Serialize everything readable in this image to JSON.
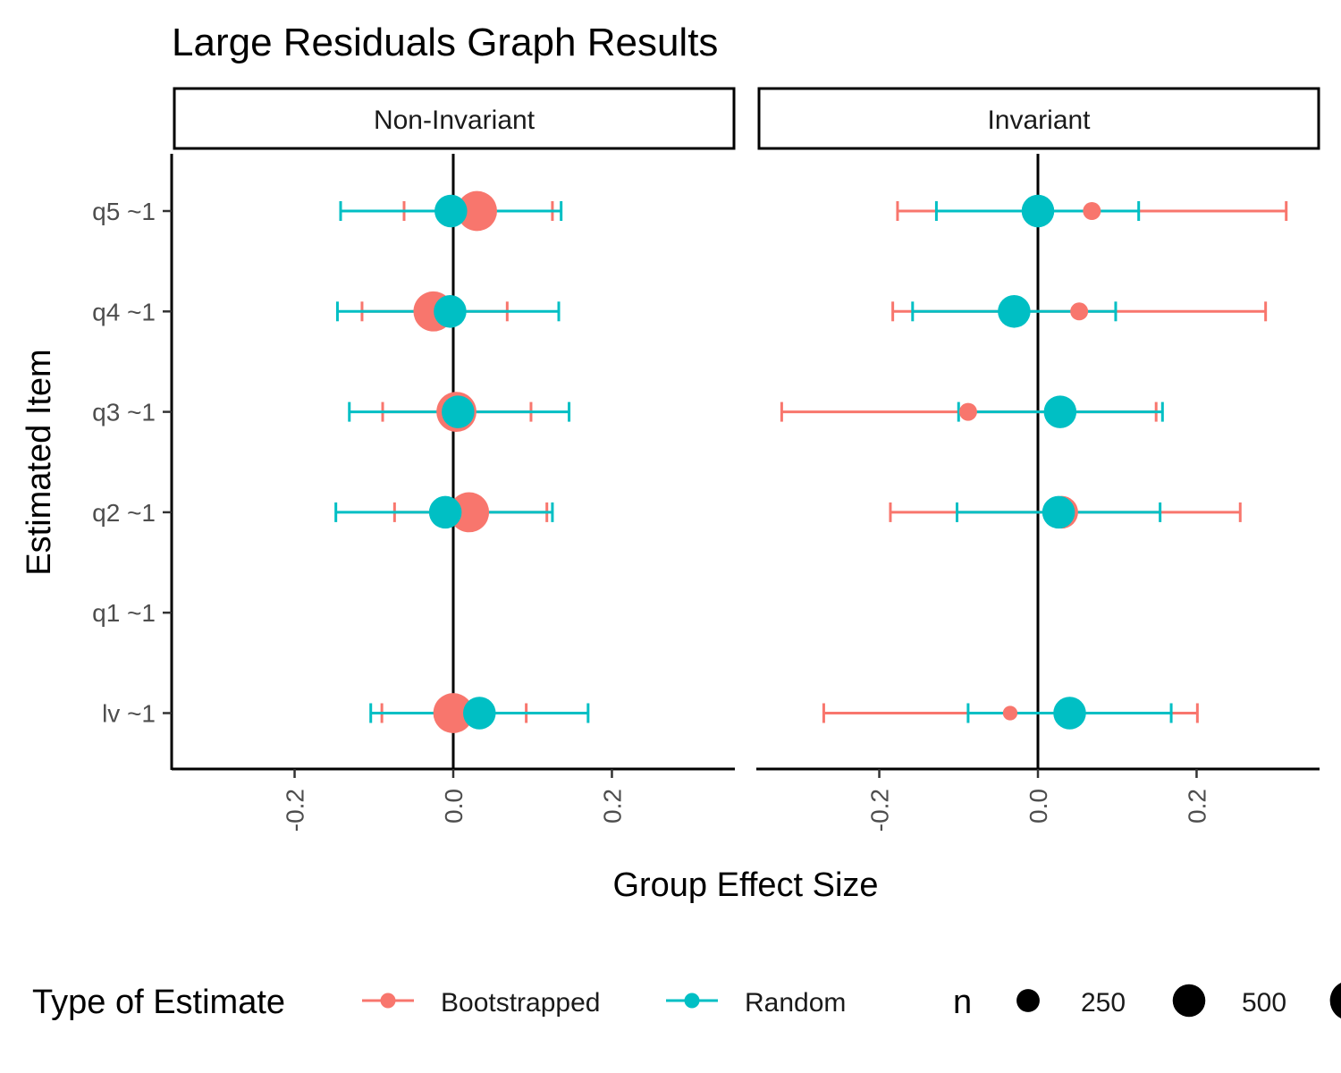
{
  "chart_data": {
    "type": "scatter",
    "title": "Large Residuals Graph Results",
    "xlabel": "Group Effect Size",
    "ylabel": "Estimated Item",
    "xlim": [
      -0.355,
      0.355
    ],
    "x_ticks": [
      "-0.2",
      "0.0",
      "0.2"
    ],
    "x_tick_values": [
      -0.2,
      0.0,
      0.2
    ],
    "reference_line_x": 0,
    "categories": [
      "q5 ~1",
      "q4 ~1",
      "q3 ~1",
      "q2 ~1",
      "q1 ~1",
      "lv ~1"
    ],
    "panels": [
      {
        "name": "Non-Invariant",
        "series": [
          {
            "name": "Bootstrapped",
            "color": "#F8766D",
            "points": [
              {
                "item": "q5 ~1",
                "x": 0.03,
                "lo": -0.062,
                "hi": 0.125,
                "n": 750
              },
              {
                "item": "q4 ~1",
                "x": -0.025,
                "lo": -0.115,
                "hi": 0.068,
                "n": 750
              },
              {
                "item": "q3 ~1",
                "x": 0.004,
                "lo": -0.089,
                "hi": 0.098,
                "n": 750
              },
              {
                "item": "q2 ~1",
                "x": 0.02,
                "lo": -0.074,
                "hi": 0.118,
                "n": 750
              },
              {
                "item": "lv ~1",
                "x": 0.0,
                "lo": -0.09,
                "hi": 0.092,
                "n": 750
              }
            ]
          },
          {
            "name": "Random",
            "color": "#00BFC4",
            "points": [
              {
                "item": "q5 ~1",
                "x": -0.003,
                "lo": -0.142,
                "hi": 0.136,
                "n": 500
              },
              {
                "item": "q4 ~1",
                "x": -0.004,
                "lo": -0.146,
                "hi": 0.133,
                "n": 500
              },
              {
                "item": "q3 ~1",
                "x": 0.006,
                "lo": -0.131,
                "hi": 0.146,
                "n": 500
              },
              {
                "item": "q2 ~1",
                "x": -0.01,
                "lo": -0.148,
                "hi": 0.125,
                "n": 500
              },
              {
                "item": "lv ~1",
                "x": 0.033,
                "lo": -0.104,
                "hi": 0.17,
                "n": 500
              }
            ]
          }
        ]
      },
      {
        "name": "Invariant",
        "series": [
          {
            "name": "Bootstrapped",
            "color": "#F8766D",
            "points": [
              {
                "item": "q5 ~1",
                "x": 0.068,
                "lo": -0.177,
                "hi": 0.313,
                "n": 150
              },
              {
                "item": "q4 ~1",
                "x": 0.052,
                "lo": -0.183,
                "hi": 0.287,
                "n": 150
              },
              {
                "item": "q3 ~1",
                "x": -0.088,
                "lo": -0.323,
                "hi": 0.149,
                "n": 150
              },
              {
                "item": "q2 ~1",
                "x": 0.03,
                "lo": -0.186,
                "hi": 0.255,
                "n": 500
              },
              {
                "item": "lv ~1",
                "x": -0.035,
                "lo": -0.27,
                "hi": 0.201,
                "n": 100
              }
            ]
          },
          {
            "name": "Random",
            "color": "#00BFC4",
            "points": [
              {
                "item": "q5 ~1",
                "x": 0.0,
                "lo": -0.128,
                "hi": 0.127,
                "n": 500
              },
              {
                "item": "q4 ~1",
                "x": -0.03,
                "lo": -0.158,
                "hi": 0.098,
                "n": 500
              },
              {
                "item": "q3 ~1",
                "x": 0.028,
                "lo": -0.1,
                "hi": 0.157,
                "n": 500
              },
              {
                "item": "q2 ~1",
                "x": 0.026,
                "lo": -0.102,
                "hi": 0.154,
                "n": 500
              },
              {
                "item": "lv ~1",
                "x": 0.04,
                "lo": -0.088,
                "hi": 0.168,
                "n": 500
              }
            ]
          }
        ]
      }
    ],
    "legend": {
      "placement": "bottom",
      "color_title": "Type of Estimate",
      "color_entries": [
        {
          "label": "Bootstrapped",
          "color": "#F8766D"
        },
        {
          "label": "Random",
          "color": "#00BFC4"
        }
      ],
      "size_title": "n",
      "size_entries": [
        {
          "label": "250",
          "n": 250
        },
        {
          "label": "500",
          "n": 500
        },
        {
          "label": "",
          "n": 750
        }
      ]
    }
  }
}
